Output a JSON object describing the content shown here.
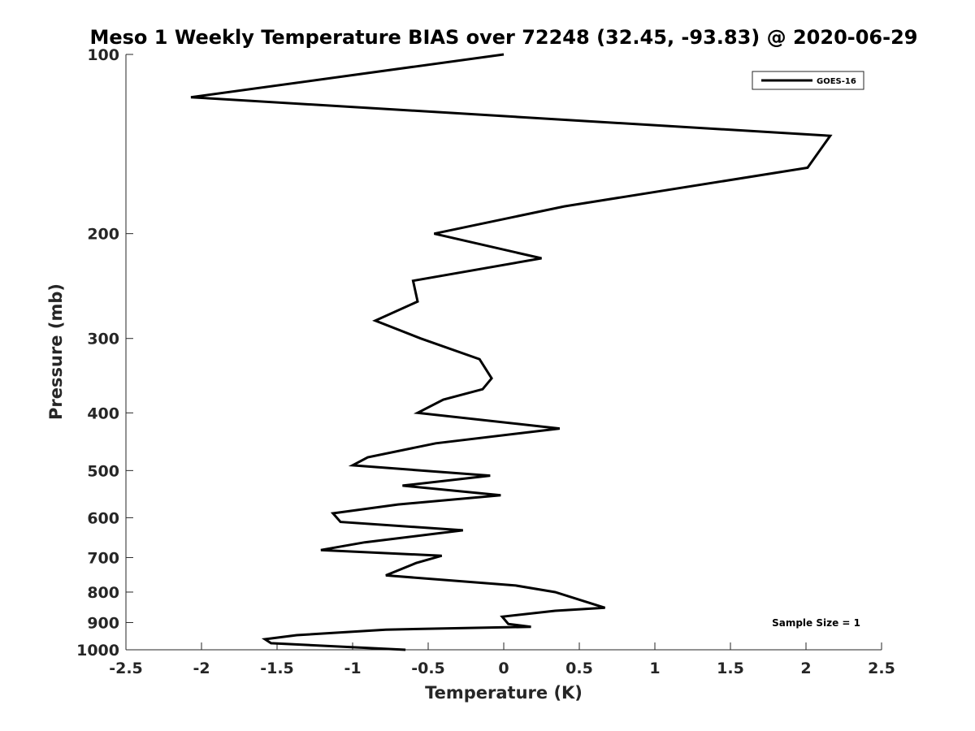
{
  "chart_data": {
    "type": "line",
    "title": "Meso 1 Weekly Temperature BIAS over 72248 (32.45, -93.83) @ 2020-06-29",
    "xlabel": "Temperature (K)",
    "ylabel": "Pressure (mb)",
    "xlim": [
      -2.5,
      2.5
    ],
    "ylim": [
      1000,
      100
    ],
    "yscale": "log",
    "y_reversed": true,
    "grid": false,
    "legend_position": "top-right",
    "xticks": [
      -2.5,
      -2,
      -1.5,
      -1,
      -0.5,
      0,
      0.5,
      1,
      1.5,
      2,
      2.5
    ],
    "xtick_labels": [
      "-2.5",
      "-2",
      "-1.5",
      "-1",
      "-0.5",
      "0",
      "0.5",
      "1",
      "1.5",
      "2",
      "2.5"
    ],
    "yticks": [
      100,
      200,
      300,
      400,
      500,
      600,
      700,
      800,
      900,
      1000
    ],
    "ytick_labels": [
      "100",
      "200",
      "300",
      "400",
      "500",
      "600",
      "700",
      "800",
      "900",
      "1000"
    ],
    "annotation": "Sample Size = 1",
    "series": [
      {
        "name": "GOES-16",
        "color": "#000000",
        "points": [
          [
            0,
            100
          ],
          [
            -2.07,
            118
          ],
          [
            2.16,
            137
          ],
          [
            2.01,
            155
          ],
          [
            0.4,
            180
          ],
          [
            -0.46,
            200
          ],
          [
            0.25,
            220
          ],
          [
            -0.6,
            240
          ],
          [
            -0.57,
            260
          ],
          [
            -0.85,
            280
          ],
          [
            -0.55,
            300
          ],
          [
            -0.16,
            325
          ],
          [
            -0.08,
            350
          ],
          [
            -0.14,
            365
          ],
          [
            -0.4,
            380
          ],
          [
            -0.57,
            400
          ],
          [
            0.37,
            425
          ],
          [
            -0.45,
            450
          ],
          [
            -0.9,
            475
          ],
          [
            -1.0,
            490
          ],
          [
            -0.09,
            510
          ],
          [
            -0.67,
            530
          ],
          [
            -0.02,
            550
          ],
          [
            -0.7,
            570
          ],
          [
            -1.13,
            590
          ],
          [
            -1.08,
            610
          ],
          [
            -0.27,
            630
          ],
          [
            -0.92,
            660
          ],
          [
            -1.21,
            680
          ],
          [
            -0.41,
            695
          ],
          [
            -0.58,
            715
          ],
          [
            -0.78,
            750
          ],
          [
            0.08,
            780
          ],
          [
            0.34,
            800
          ],
          [
            0.67,
            850
          ],
          [
            0.34,
            860
          ],
          [
            -0.01,
            880
          ],
          [
            0.03,
            905
          ],
          [
            0.18,
            915
          ],
          [
            -0.78,
            925
          ],
          [
            -1.37,
            945
          ],
          [
            -1.58,
            960
          ],
          [
            -1.54,
            975
          ],
          [
            -0.65,
            1000
          ]
        ]
      }
    ]
  }
}
